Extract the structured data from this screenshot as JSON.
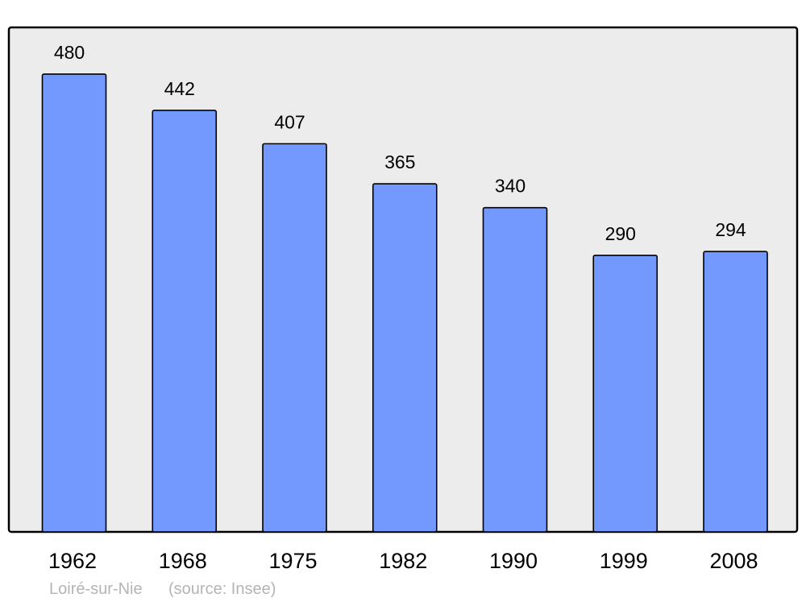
{
  "chart_data": {
    "type": "bar",
    "categories": [
      "1962",
      "1968",
      "1975",
      "1982",
      "1990",
      "1999",
      "2008"
    ],
    "values": [
      480,
      442,
      407,
      365,
      340,
      290,
      294
    ],
    "title": "",
    "xlabel": "",
    "ylabel": "",
    "ylim": [
      0,
      529
    ],
    "grid": false,
    "data_labels": true,
    "colors": {
      "bar": "#7399ff",
      "plot_background": "#ececec",
      "border": "#000000"
    }
  },
  "footer": {
    "place": "Loiré-sur-Nie",
    "source": "(source: Insee)"
  }
}
